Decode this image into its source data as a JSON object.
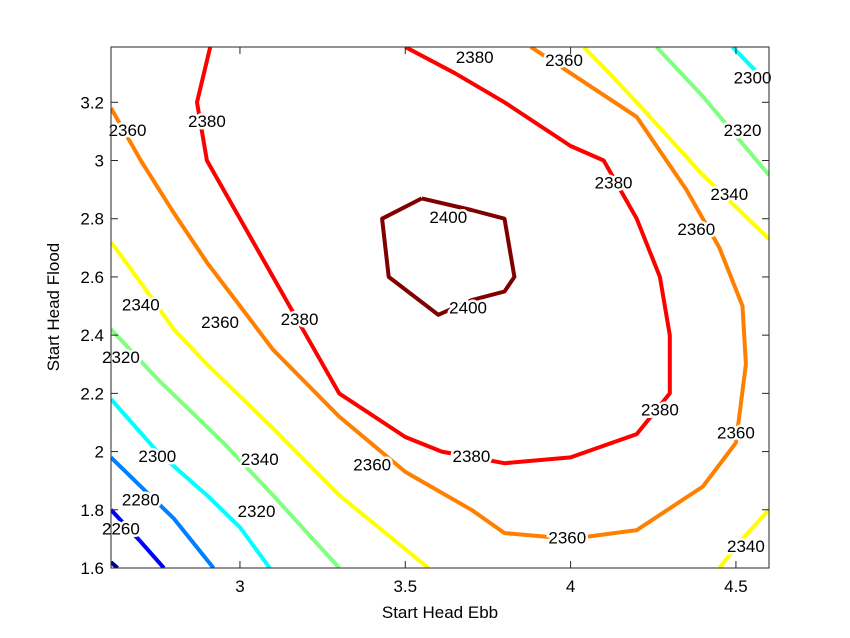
{
  "chart_data": {
    "type": "contour",
    "title": "",
    "xlabel": "Start Head Ebb",
    "ylabel": "Start Head Flood",
    "xlim": [
      2.61,
      4.6
    ],
    "ylim": [
      1.6,
      3.39
    ],
    "xticks": [
      3,
      3.5,
      4,
      4.5
    ],
    "xtick_labels": [
      "3",
      "3.5",
      "4",
      "4.5"
    ],
    "yticks": [
      1.6,
      1.8,
      2.0,
      2.2,
      2.4,
      2.6,
      2.8,
      3.0,
      3.2
    ],
    "ytick_labels": [
      "1.6",
      "1.8",
      "2",
      "2.2",
      "2.4",
      "2.6",
      "2.8",
      "3",
      "3.2"
    ],
    "grid": false,
    "legend": null,
    "levels": [
      2260,
      2280,
      2300,
      2320,
      2340,
      2360,
      2380,
      2400
    ],
    "level_colors": {
      "2240": "#00008f",
      "2260": "#0000ff",
      "2280": "#0080ff",
      "2300": "#00ffff",
      "2320": "#80ff80",
      "2340": "#ffff00",
      "2360": "#ff8000",
      "2380": "#ff0000",
      "2400": "#800000"
    },
    "contours": [
      {
        "level": 2240,
        "color": "#00008f",
        "points": [
          [
            2.61,
            1.62
          ],
          [
            2.63,
            1.6
          ]
        ]
      },
      {
        "level": 2260,
        "color": "#0000ff",
        "points": [
          [
            2.61,
            1.8
          ],
          [
            2.7,
            1.69
          ],
          [
            2.77,
            1.6
          ]
        ]
      },
      {
        "level": 2280,
        "color": "#0080ff",
        "points": [
          [
            2.61,
            1.98
          ],
          [
            2.7,
            1.88
          ],
          [
            2.8,
            1.77
          ],
          [
            2.92,
            1.6
          ]
        ]
      },
      {
        "level": 2300,
        "color": "#00ffff",
        "points": [
          [
            2.61,
            2.18
          ],
          [
            2.75,
            2.0
          ],
          [
            2.9,
            1.85
          ],
          [
            3.0,
            1.74
          ],
          [
            3.09,
            1.6
          ]
        ]
      },
      {
        "level": 2300,
        "color": "#00ffff",
        "points": [
          [
            4.49,
            3.39
          ],
          [
            4.6,
            3.26
          ]
        ]
      },
      {
        "level": 2320,
        "color": "#80ff80",
        "points": [
          [
            2.61,
            2.42
          ],
          [
            2.75,
            2.25
          ],
          [
            2.95,
            2.03
          ],
          [
            3.1,
            1.85
          ],
          [
            3.3,
            1.6
          ]
        ]
      },
      {
        "level": 2320,
        "color": "#80ff80",
        "points": [
          [
            4.26,
            3.39
          ],
          [
            4.4,
            3.22
          ],
          [
            4.6,
            2.95
          ]
        ]
      },
      {
        "level": 2340,
        "color": "#ffff00",
        "points": [
          [
            2.61,
            2.72
          ],
          [
            2.7,
            2.58
          ],
          [
            2.8,
            2.42
          ],
          [
            2.9,
            2.3
          ],
          [
            3.1,
            2.08
          ],
          [
            3.3,
            1.85
          ],
          [
            3.57,
            1.6
          ]
        ]
      },
      {
        "level": 2340,
        "color": "#ffff00",
        "points": [
          [
            4.04,
            3.39
          ],
          [
            4.1,
            3.32
          ],
          [
            4.2,
            3.2
          ],
          [
            4.4,
            2.95
          ],
          [
            4.6,
            2.73
          ]
        ]
      },
      {
        "level": 2340,
        "color": "#ffff00",
        "points": [
          [
            4.45,
            1.6
          ],
          [
            4.52,
            1.7
          ],
          [
            4.6,
            1.8
          ]
        ]
      },
      {
        "level": 2360,
        "color": "#ff8000",
        "points": [
          [
            2.61,
            3.18
          ],
          [
            2.7,
            3.0
          ],
          [
            2.8,
            2.82
          ],
          [
            2.9,
            2.65
          ],
          [
            3.0,
            2.5
          ],
          [
            3.1,
            2.35
          ],
          [
            3.3,
            2.12
          ],
          [
            3.5,
            1.93
          ],
          [
            3.7,
            1.8
          ],
          [
            3.8,
            1.72
          ],
          [
            4.0,
            1.7
          ],
          [
            4.2,
            1.73
          ],
          [
            4.4,
            1.88
          ],
          [
            4.5,
            2.03
          ],
          [
            4.53,
            2.3
          ],
          [
            4.52,
            2.5
          ],
          [
            4.45,
            2.7
          ],
          [
            4.35,
            2.9
          ],
          [
            4.2,
            3.15
          ],
          [
            4.0,
            3.3
          ],
          [
            3.88,
            3.39
          ]
        ]
      },
      {
        "level": 2380,
        "color": "#ff0000",
        "points": [
          [
            2.91,
            3.39
          ],
          [
            2.87,
            3.2
          ],
          [
            2.9,
            3.0
          ],
          [
            3.0,
            2.8
          ],
          [
            3.1,
            2.6
          ],
          [
            3.2,
            2.4
          ],
          [
            3.3,
            2.2
          ],
          [
            3.5,
            2.05
          ],
          [
            3.61,
            2.0
          ],
          [
            3.8,
            1.96
          ],
          [
            4.0,
            1.98
          ],
          [
            4.2,
            2.06
          ],
          [
            4.3,
            2.2
          ],
          [
            4.3,
            2.4
          ],
          [
            4.27,
            2.6
          ],
          [
            4.2,
            2.8
          ],
          [
            4.1,
            3.0
          ],
          [
            4.0,
            3.05
          ],
          [
            3.8,
            3.2
          ],
          [
            3.65,
            3.3
          ],
          [
            3.5,
            3.39
          ]
        ]
      },
      {
        "level": 2400,
        "color": "#800000",
        "points": [
          [
            3.55,
            2.87
          ],
          [
            3.7,
            2.83
          ],
          [
            3.8,
            2.8
          ],
          [
            3.83,
            2.6
          ],
          [
            3.8,
            2.55
          ],
          [
            3.7,
            2.52
          ],
          [
            3.6,
            2.47
          ],
          [
            3.45,
            2.6
          ],
          [
            3.43,
            2.8
          ],
          [
            3.55,
            2.87
          ]
        ]
      }
    ],
    "labels": [
      {
        "text": "2260",
        "x": 2.64,
        "y": 1.73
      },
      {
        "text": "2280",
        "x": 2.7,
        "y": 1.83
      },
      {
        "text": "2300",
        "x": 2.75,
        "y": 1.98
      },
      {
        "text": "2300",
        "x": 4.55,
        "y": 3.28
      },
      {
        "text": "2320",
        "x": 2.64,
        "y": 2.32
      },
      {
        "text": "2320",
        "x": 3.05,
        "y": 1.79
      },
      {
        "text": "2320",
        "x": 4.52,
        "y": 3.1
      },
      {
        "text": "2340",
        "x": 2.7,
        "y": 2.5
      },
      {
        "text": "2340",
        "x": 3.06,
        "y": 1.97
      },
      {
        "text": "2340",
        "x": 4.48,
        "y": 2.88
      },
      {
        "text": "2340",
        "x": 4.53,
        "y": 1.67
      },
      {
        "text": "2360",
        "x": 2.66,
        "y": 3.1
      },
      {
        "text": "2360",
        "x": 2.94,
        "y": 2.44
      },
      {
        "text": "2360",
        "x": 3.4,
        "y": 1.95
      },
      {
        "text": "2360",
        "x": 3.98,
        "y": 3.34
      },
      {
        "text": "2360",
        "x": 4.38,
        "y": 2.76
      },
      {
        "text": "2360",
        "x": 4.5,
        "y": 2.06
      },
      {
        "text": "2360",
        "x": 3.99,
        "y": 1.7
      },
      {
        "text": "2380",
        "x": 2.9,
        "y": 3.13
      },
      {
        "text": "2380",
        "x": 3.18,
        "y": 2.45
      },
      {
        "text": "2380",
        "x": 3.71,
        "y": 3.35
      },
      {
        "text": "2380",
        "x": 4.13,
        "y": 2.92
      },
      {
        "text": "2380",
        "x": 3.7,
        "y": 1.98
      },
      {
        "text": "2380",
        "x": 4.27,
        "y": 2.14
      },
      {
        "text": "2400",
        "x": 3.63,
        "y": 2.8
      },
      {
        "text": "2400",
        "x": 3.69,
        "y": 2.49
      }
    ]
  },
  "axes": {
    "xlabel": "Start Head Ebb",
    "ylabel": "Start Head Flood"
  }
}
